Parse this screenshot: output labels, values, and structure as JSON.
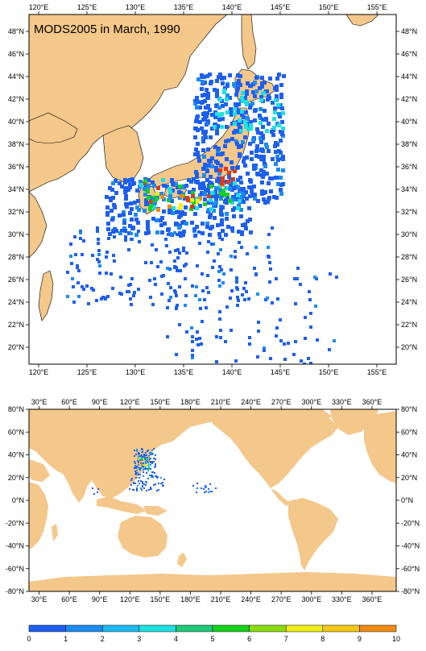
{
  "top_map": {
    "title": "MODS2005 in March, 1990",
    "lon_ticks": [
      "120°E",
      "125°E",
      "130°E",
      "135°E",
      "140°E",
      "145°E",
      "150°E",
      "155°E"
    ],
    "lat_ticks": [
      "48°N",
      "46°N",
      "44°N",
      "42°N",
      "40°N",
      "38°N",
      "36°N",
      "34°N",
      "32°N",
      "30°N",
      "28°N",
      "26°N",
      "24°N",
      "22°N",
      "20°N"
    ],
    "lon_range": [
      119,
      157
    ],
    "lat_range": [
      18.5,
      49.5
    ]
  },
  "bottom_map": {
    "lon_ticks": [
      "30°E",
      "60°E",
      "90°E",
      "120°E",
      "150°E",
      "180°E",
      "210°E",
      "240°E",
      "270°E",
      "300°E",
      "330°E",
      "360°E"
    ],
    "lat_ticks": [
      "80°N",
      "60°N",
      "40°N",
      "20°N",
      "0°N",
      "-20°N",
      "-40°N",
      "-60°N",
      "-80°N"
    ],
    "lon_range": [
      20,
      384
    ],
    "lat_range": [
      -80,
      80
    ]
  },
  "colorbar": {
    "labels": [
      "0",
      "1",
      "2",
      "3",
      "4",
      "5",
      "6",
      "7",
      "8",
      "9",
      "10"
    ],
    "colors": [
      "#1e5ff0",
      "#1c8cf0",
      "#1fb8f0",
      "#1ee0e0",
      "#1ec878",
      "#16d21a",
      "#8cdc14",
      "#f0f014",
      "#f5c814",
      "#f08c14",
      "#e03a14"
    ]
  },
  "colors": {
    "land": "#f4c78a",
    "ocean": "#ffffff"
  }
}
